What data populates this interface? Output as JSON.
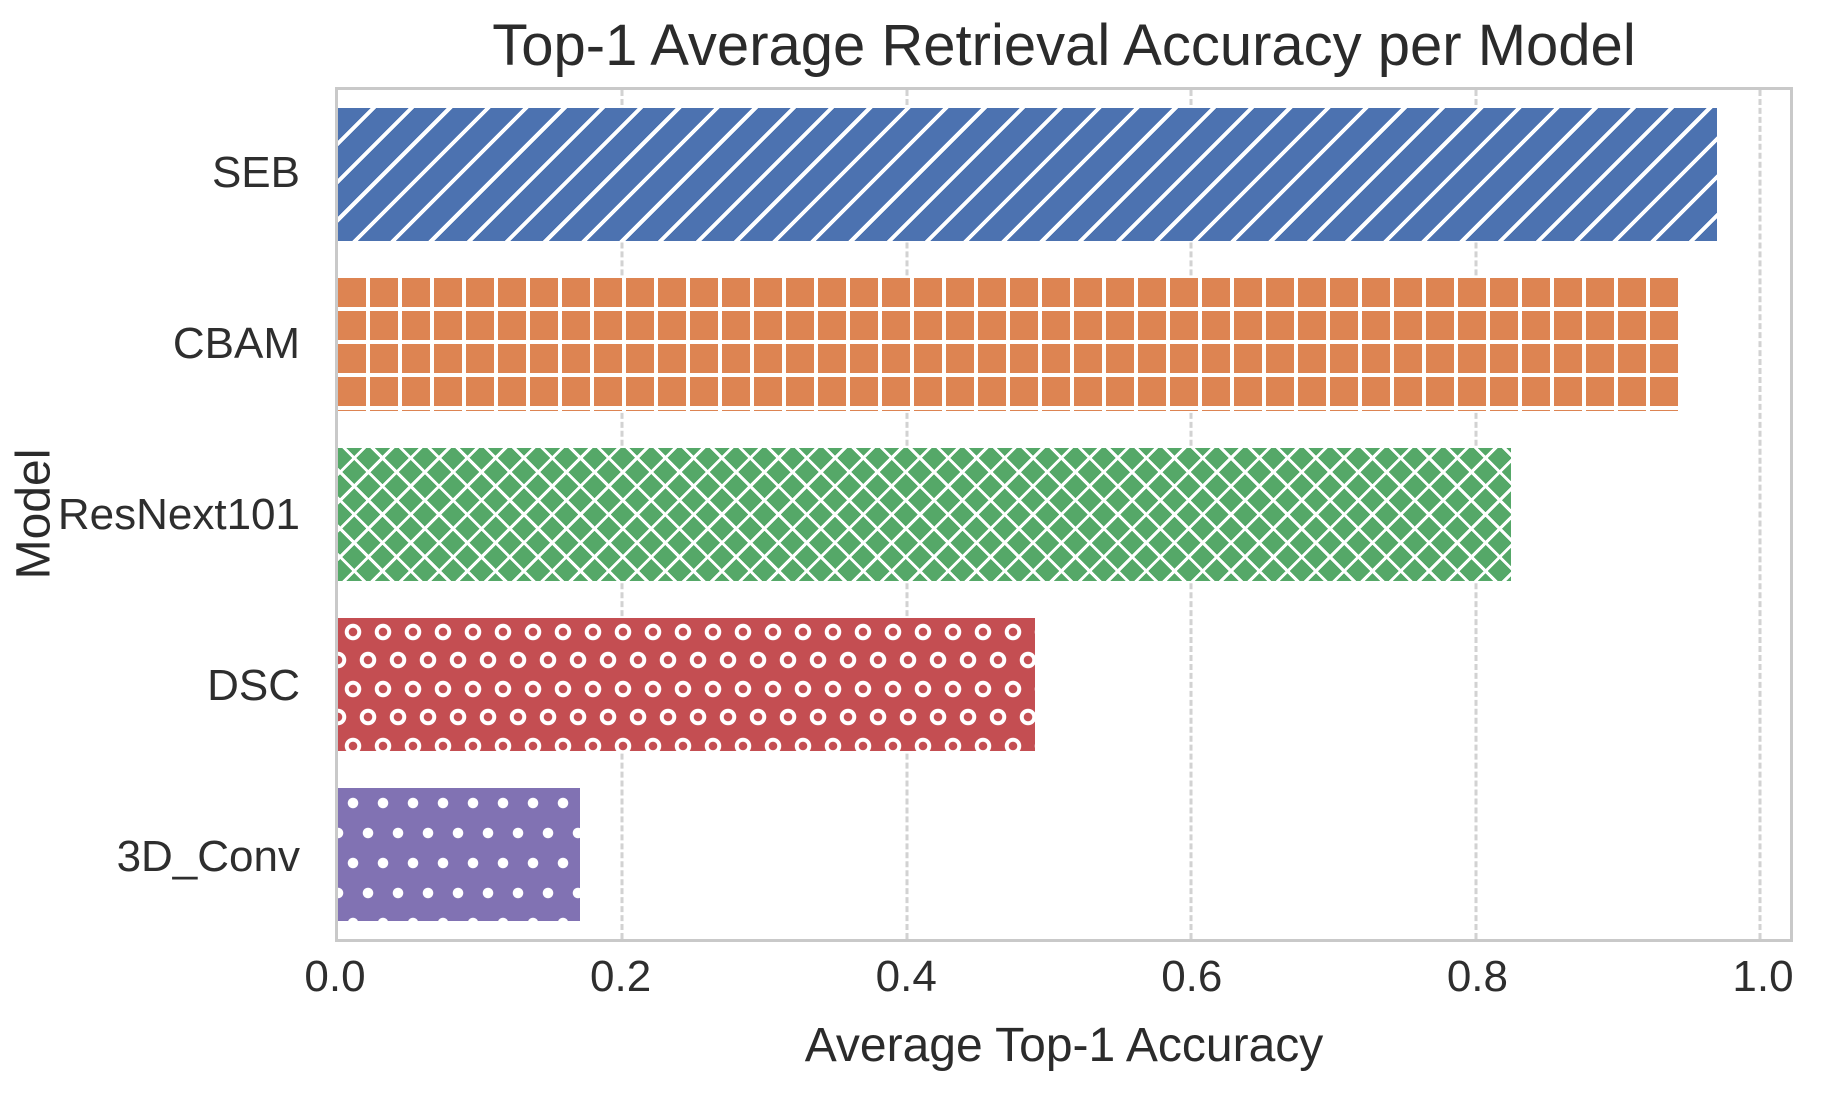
{
  "chart_data": {
    "type": "bar",
    "orientation": "horizontal",
    "title": "Top-1 Average Retrieval Accuracy per Model",
    "xlabel": "Average Top-1 Accuracy",
    "ylabel": "Model",
    "categories": [
      "SEB",
      "CBAM",
      "ResNext101",
      "DSC",
      "3D_Conv"
    ],
    "values": [
      0.97,
      0.945,
      0.825,
      0.49,
      0.17
    ],
    "bar_colors": [
      "#4C72B0",
      "#DD8452",
      "#55A868",
      "#C44E52",
      "#8172B3"
    ],
    "hatches": [
      "diagonal",
      "grid",
      "cross",
      "ring",
      "dot"
    ],
    "xticks": [
      0.0,
      0.2,
      0.4,
      0.6,
      0.8,
      1.0
    ],
    "xtick_labels": [
      "0.0",
      "0.2",
      "0.4",
      "0.6",
      "0.8",
      "1.0"
    ],
    "xlim": [
      0,
      1.021
    ],
    "grid": "vertical-dashed",
    "legend": "none"
  },
  "style": {
    "background": "#ffffff",
    "text_color": "#262626",
    "grid_color": "#d2d2d2",
    "spine_color": "#c9c9c9",
    "hatch_color": "#ffffff"
  }
}
